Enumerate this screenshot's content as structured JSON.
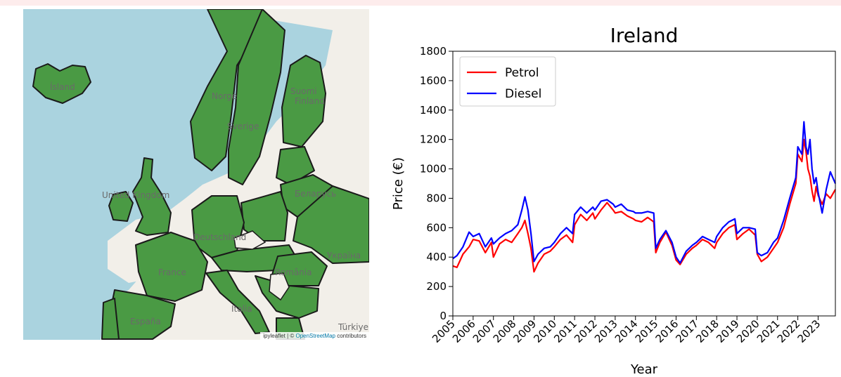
{
  "map": {
    "labels": [
      {
        "text": "Ísland"
      },
      {
        "text": "Norge"
      },
      {
        "text": "Suomi"
      },
      {
        "text": "Finland"
      },
      {
        "text": "Sverige"
      },
      {
        "text": "United Kingdom"
      },
      {
        "text": "Deutschland"
      },
      {
        "text": "Беларусь"
      },
      {
        "text": "Україна"
      },
      {
        "text": "France"
      },
      {
        "text": "România"
      },
      {
        "text": "España"
      },
      {
        "text": "Italia"
      },
      {
        "text": "Türkiye"
      }
    ],
    "attribution": {
      "prefix": "ipyleaflet | © ",
      "link": "OpenStreetMap",
      "suffix": " contributors"
    },
    "colors": {
      "sea": "#aad3df",
      "land": "#f2efe9",
      "fill": "#4a9a44",
      "stroke": "#1a1a1a"
    }
  },
  "chart_data": {
    "type": "line",
    "title": "Ireland",
    "xlabel": "Year",
    "ylabel": "Price (€)",
    "xlim": [
      2005.0,
      2023.85
    ],
    "ylim": [
      0,
      1800
    ],
    "yticks": [
      0,
      200,
      400,
      600,
      800,
      1000,
      1200,
      1400,
      1600,
      1800
    ],
    "xticks": [
      2005,
      2006,
      2007,
      2008,
      2009,
      2010,
      2011,
      2012,
      2013,
      2014,
      2015,
      2016,
      2017,
      2018,
      2019,
      2020,
      2021,
      2022,
      2023
    ],
    "legend": "upper-left",
    "grid": false,
    "series": [
      {
        "name": "Petrol",
        "color": "#ff0000",
        "x": [
          2005.0,
          2005.2,
          2005.5,
          2005.8,
          2006.0,
          2006.3,
          2006.6,
          2006.9,
          2007.0,
          2007.3,
          2007.6,
          2007.9,
          2008.2,
          2008.4,
          2008.55,
          2008.7,
          2008.85,
          2009.0,
          2009.2,
          2009.5,
          2009.8,
          2010.0,
          2010.3,
          2010.6,
          2010.9,
          2011.0,
          2011.3,
          2011.6,
          2011.9,
          2012.0,
          2012.3,
          2012.6,
          2012.9,
          2013.0,
          2013.3,
          2013.6,
          2013.9,
          2014.0,
          2014.3,
          2014.6,
          2014.9,
          2015.0,
          2015.2,
          2015.5,
          2015.8,
          2016.0,
          2016.2,
          2016.5,
          2016.8,
          2017.0,
          2017.3,
          2017.6,
          2017.9,
          2018.0,
          2018.3,
          2018.6,
          2018.9,
          2019.0,
          2019.3,
          2019.6,
          2019.9,
          2020.0,
          2020.2,
          2020.5,
          2020.8,
          2021.0,
          2021.3,
          2021.6,
          2021.9,
          2022.0,
          2022.2,
          2022.3,
          2022.4,
          2022.5,
          2022.6,
          2022.7,
          2022.8,
          2022.9,
          2023.0,
          2023.2,
          2023.4,
          2023.6,
          2023.85
        ],
        "values": [
          340,
          330,
          420,
          470,
          520,
          510,
          430,
          500,
          400,
          490,
          520,
          500,
          560,
          600,
          650,
          560,
          460,
          300,
          360,
          420,
          440,
          470,
          520,
          550,
          500,
          620,
          690,
          650,
          700,
          660,
          720,
          770,
          720,
          700,
          710,
          680,
          660,
          650,
          640,
          670,
          640,
          430,
          500,
          570,
          480,
          380,
          350,
          420,
          460,
          480,
          520,
          500,
          460,
          500,
          560,
          600,
          620,
          520,
          560,
          590,
          550,
          420,
          370,
          400,
          460,
          500,
          600,
          760,
          900,
          1100,
          1050,
          1200,
          1120,
          1000,
          950,
          850,
          780,
          880,
          820,
          760,
          830,
          800,
          860
        ]
      },
      {
        "name": "Diesel",
        "color": "#0000ff",
        "x": [
          2005.0,
          2005.2,
          2005.5,
          2005.8,
          2006.0,
          2006.3,
          2006.6,
          2006.9,
          2007.0,
          2007.3,
          2007.6,
          2007.9,
          2008.2,
          2008.4,
          2008.55,
          2008.7,
          2008.85,
          2009.0,
          2009.2,
          2009.5,
          2009.8,
          2010.0,
          2010.3,
          2010.6,
          2010.9,
          2011.0,
          2011.3,
          2011.6,
          2011.9,
          2012.0,
          2012.3,
          2012.6,
          2012.9,
          2013.0,
          2013.3,
          2013.6,
          2013.9,
          2014.0,
          2014.3,
          2014.6,
          2014.9,
          2015.0,
          2015.2,
          2015.5,
          2015.8,
          2016.0,
          2016.2,
          2016.5,
          2016.8,
          2017.0,
          2017.3,
          2017.6,
          2017.9,
          2018.0,
          2018.3,
          2018.6,
          2018.9,
          2019.0,
          2019.3,
          2019.6,
          2019.9,
          2020.0,
          2020.2,
          2020.5,
          2020.8,
          2021.0,
          2021.3,
          2021.6,
          2021.9,
          2022.0,
          2022.2,
          2022.3,
          2022.4,
          2022.5,
          2022.6,
          2022.7,
          2022.8,
          2022.9,
          2023.0,
          2023.2,
          2023.4,
          2023.6,
          2023.85
        ],
        "values": [
          390,
          410,
          470,
          570,
          540,
          560,
          470,
          530,
          490,
          530,
          560,
          580,
          620,
          720,
          810,
          720,
          560,
          370,
          420,
          460,
          470,
          500,
          560,
          600,
          560,
          690,
          740,
          700,
          740,
          720,
          780,
          790,
          760,
          740,
          760,
          720,
          710,
          700,
          700,
          710,
          700,
          460,
          520,
          580,
          500,
          400,
          360,
          440,
          480,
          500,
          540,
          520,
          500,
          540,
          600,
          640,
          660,
          560,
          600,
          600,
          590,
          430,
          410,
          430,
          500,
          530,
          650,
          800,
          940,
          1150,
          1100,
          1320,
          1150,
          1100,
          1200,
          1000,
          900,
          940,
          840,
          700,
          860,
          980,
          900
        ]
      }
    ]
  }
}
